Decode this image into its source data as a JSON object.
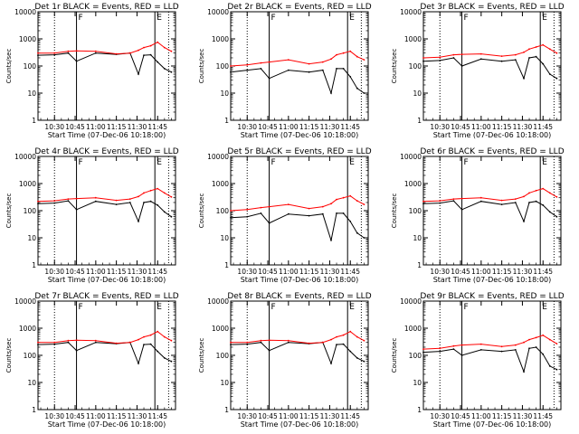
{
  "figure": {
    "colors": {
      "events": "#000000",
      "lld": "#ff0000",
      "background": "#ffffff"
    },
    "y_tick_labels": [
      "1",
      "10",
      "100",
      "1000",
      "10000"
    ],
    "x_tick_labels": [
      "10:30",
      "10:45",
      "11:00",
      "11:15",
      "11:30",
      "11:45"
    ],
    "xlabel": "Start Time (07-Dec-06 10:18:00)",
    "ylabel": "Counts/sec",
    "marker_labels": [
      "F",
      "E"
    ]
  },
  "chart_data": [
    {
      "type": "line",
      "title": "Det 1r BLACK = Events, RED = LLD",
      "xlabel": "Start Time (07-Dec-06 10:18:00)",
      "ylabel": "Counts/sec",
      "ylim": [
        1,
        10000
      ],
      "y_scale": "log",
      "grid": false,
      "x": [
        "10:18",
        "10:30",
        "10:40",
        "10:46",
        "11:00",
        "11:15",
        "11:25",
        "11:31",
        "11:35",
        "11:40",
        "11:45",
        "11:50",
        "11:55"
      ],
      "series": [
        {
          "name": "Events",
          "values": [
            250,
            260,
            300,
            150,
            300,
            270,
            300,
            50,
            250,
            260,
            140,
            80,
            60
          ]
        },
        {
          "name": "LLD",
          "values": [
            300,
            300,
            350,
            360,
            350,
            280,
            300,
            380,
            480,
            560,
            750,
            480,
            350
          ]
        }
      ],
      "vlines": {
        "dotted": [
          "10:30",
          "11:53"
        ],
        "solid": [
          "10:46",
          "11:43"
        ]
      }
    },
    {
      "type": "line",
      "title": "Det 2r BLACK = Events, RED = LLD",
      "xlabel": "Start Time (07-Dec-06 10:18:00)",
      "ylabel": "Counts/sec",
      "ylim": [
        1,
        10000
      ],
      "y_scale": "log",
      "grid": false,
      "x": [
        "10:18",
        "10:30",
        "10:40",
        "10:46",
        "11:00",
        "11:15",
        "11:25",
        "11:31",
        "11:35",
        "11:40",
        "11:45",
        "11:50",
        "11:55"
      ],
      "series": [
        {
          "name": "Events",
          "values": [
            60,
            70,
            80,
            35,
            70,
            60,
            70,
            10,
            80,
            80,
            40,
            15,
            10
          ]
        },
        {
          "name": "LLD",
          "values": [
            100,
            110,
            130,
            140,
            170,
            120,
            140,
            180,
            260,
            300,
            350,
            220,
            170
          ]
        }
      ],
      "vlines": {
        "dotted": [
          "10:30",
          "11:53"
        ],
        "solid": [
          "10:46",
          "11:43"
        ]
      }
    },
    {
      "type": "line",
      "title": "Det 3r BLACK = Events, RED = LLD",
      "xlabel": "Start Time (07-Dec-06 10:18:00)",
      "ylabel": "Counts/sec",
      "ylim": [
        1,
        10000
      ],
      "y_scale": "log",
      "grid": false,
      "x": [
        "10:18",
        "10:30",
        "10:40",
        "10:46",
        "11:00",
        "11:15",
        "11:25",
        "11:31",
        "11:35",
        "11:40",
        "11:45",
        "11:50",
        "11:55"
      ],
      "series": [
        {
          "name": "Events",
          "values": [
            150,
            160,
            200,
            100,
            180,
            150,
            170,
            35,
            200,
            220,
            120,
            50,
            35
          ]
        },
        {
          "name": "LLD",
          "values": [
            200,
            210,
            260,
            270,
            280,
            230,
            260,
            320,
            420,
            500,
            600,
            420,
            300
          ]
        }
      ],
      "vlines": {
        "dotted": [
          "10:30",
          "11:53"
        ],
        "solid": [
          "10:46",
          "11:43"
        ]
      }
    },
    {
      "type": "line",
      "title": "Det 4r BLACK = Events, RED = LLD",
      "xlabel": "Start Time (07-Dec-06 10:18:00)",
      "ylabel": "Counts/sec",
      "ylim": [
        1,
        10000
      ],
      "y_scale": "log",
      "grid": false,
      "x": [
        "10:18",
        "10:30",
        "10:40",
        "10:46",
        "11:00",
        "11:15",
        "11:25",
        "11:31",
        "11:35",
        "11:40",
        "11:45",
        "11:50",
        "11:55"
      ],
      "series": [
        {
          "name": "Events",
          "values": [
            180,
            190,
            230,
            110,
            220,
            170,
            200,
            40,
            200,
            220,
            160,
            90,
            60
          ]
        },
        {
          "name": "LLD",
          "values": [
            220,
            230,
            270,
            280,
            300,
            240,
            270,
            330,
            450,
            550,
            650,
            450,
            320
          ]
        }
      ],
      "vlines": {
        "dotted": [
          "10:30",
          "11:53"
        ],
        "solid": [
          "10:46",
          "11:43"
        ]
      }
    },
    {
      "type": "line",
      "title": "Det 5r BLACK = Events, RED = LLD",
      "xlabel": "Start Time (07-Dec-06 10:18:00)",
      "ylabel": "Counts/sec",
      "ylim": [
        1,
        10000
      ],
      "y_scale": "log",
      "grid": false,
      "x": [
        "10:18",
        "10:30",
        "10:40",
        "10:46",
        "11:00",
        "11:15",
        "11:25",
        "11:31",
        "11:35",
        "11:40",
        "11:45",
        "11:50",
        "11:55"
      ],
      "series": [
        {
          "name": "Events",
          "values": [
            55,
            60,
            80,
            35,
            75,
            65,
            75,
            8,
            80,
            80,
            40,
            15,
            10
          ]
        },
        {
          "name": "LLD",
          "values": [
            100,
            110,
            130,
            140,
            170,
            120,
            140,
            180,
            260,
            300,
            350,
            230,
            170
          ]
        }
      ],
      "vlines": {
        "dotted": [
          "10:30",
          "11:53"
        ],
        "solid": [
          "10:46",
          "11:43"
        ]
      }
    },
    {
      "type": "line",
      "title": "Det 6r BLACK = Events, RED = LLD",
      "xlabel": "Start Time (07-Dec-06 10:18:00)",
      "ylabel": "Counts/sec",
      "ylim": [
        1,
        10000
      ],
      "y_scale": "log",
      "grid": false,
      "x": [
        "10:18",
        "10:30",
        "10:40",
        "10:46",
        "11:00",
        "11:15",
        "11:25",
        "11:31",
        "11:35",
        "11:40",
        "11:45",
        "11:50",
        "11:55"
      ],
      "series": [
        {
          "name": "Events",
          "values": [
            180,
            190,
            230,
            110,
            220,
            170,
            200,
            40,
            200,
            220,
            160,
            90,
            60
          ]
        },
        {
          "name": "LLD",
          "values": [
            220,
            230,
            270,
            280,
            300,
            240,
            270,
            330,
            450,
            550,
            650,
            450,
            320
          ]
        }
      ],
      "vlines": {
        "dotted": [
          "10:30",
          "11:53"
        ],
        "solid": [
          "10:46",
          "11:43"
        ]
      }
    },
    {
      "type": "line",
      "title": "Det 7r BLACK = Events, RED = LLD",
      "xlabel": "Start Time (07-Dec-06 10:18:00)",
      "ylabel": "Counts/sec",
      "ylim": [
        1,
        10000
      ],
      "y_scale": "log",
      "grid": false,
      "x": [
        "10:18",
        "10:30",
        "10:40",
        "10:46",
        "11:00",
        "11:15",
        "11:25",
        "11:31",
        "11:35",
        "11:40",
        "11:45",
        "11:50",
        "11:55"
      ],
      "series": [
        {
          "name": "Events",
          "values": [
            250,
            260,
            300,
            150,
            300,
            270,
            300,
            50,
            250,
            260,
            140,
            80,
            60
          ]
        },
        {
          "name": "LLD",
          "values": [
            300,
            300,
            350,
            360,
            350,
            280,
            300,
            380,
            480,
            560,
            750,
            480,
            350
          ]
        }
      ],
      "vlines": {
        "dotted": [
          "10:30",
          "11:53"
        ],
        "solid": [
          "10:46",
          "11:43"
        ]
      }
    },
    {
      "type": "line",
      "title": "Det 8r BLACK = Events, RED = LLD",
      "xlabel": "Start Time (07-Dec-06 10:18:00)",
      "ylabel": "Counts/sec",
      "ylim": [
        1,
        10000
      ],
      "y_scale": "log",
      "grid": false,
      "x": [
        "10:18",
        "10:30",
        "10:40",
        "10:46",
        "11:00",
        "11:15",
        "11:25",
        "11:31",
        "11:35",
        "11:40",
        "11:45",
        "11:50",
        "11:55"
      ],
      "series": [
        {
          "name": "Events",
          "values": [
            250,
            260,
            300,
            150,
            300,
            270,
            300,
            50,
            250,
            260,
            140,
            80,
            60
          ]
        },
        {
          "name": "LLD",
          "values": [
            300,
            300,
            350,
            360,
            350,
            280,
            300,
            380,
            480,
            560,
            750,
            480,
            350
          ]
        }
      ],
      "vlines": {
        "dotted": [
          "10:30",
          "11:53"
        ],
        "solid": [
          "10:46",
          "11:43"
        ]
      }
    },
    {
      "type": "line",
      "title": "Det 9r BLACK = Events, RED = LLD",
      "xlabel": "Start Time (07-Dec-06 10:18:00)",
      "ylabel": "Counts/sec",
      "ylim": [
        1,
        10000
      ],
      "y_scale": "log",
      "grid": false,
      "x": [
        "10:18",
        "10:30",
        "10:40",
        "10:46",
        "11:00",
        "11:15",
        "11:25",
        "11:31",
        "11:35",
        "11:40",
        "11:45",
        "11:50",
        "11:55"
      ],
      "series": [
        {
          "name": "Events",
          "values": [
            130,
            140,
            170,
            100,
            160,
            140,
            160,
            25,
            180,
            200,
            110,
            40,
            30
          ]
        },
        {
          "name": "LLD",
          "values": [
            170,
            180,
            220,
            240,
            260,
            210,
            240,
            300,
            380,
            450,
            550,
            380,
            270
          ]
        }
      ],
      "vlines": {
        "dotted": [
          "10:30",
          "11:53"
        ],
        "solid": [
          "10:46",
          "11:43"
        ]
      }
    }
  ]
}
